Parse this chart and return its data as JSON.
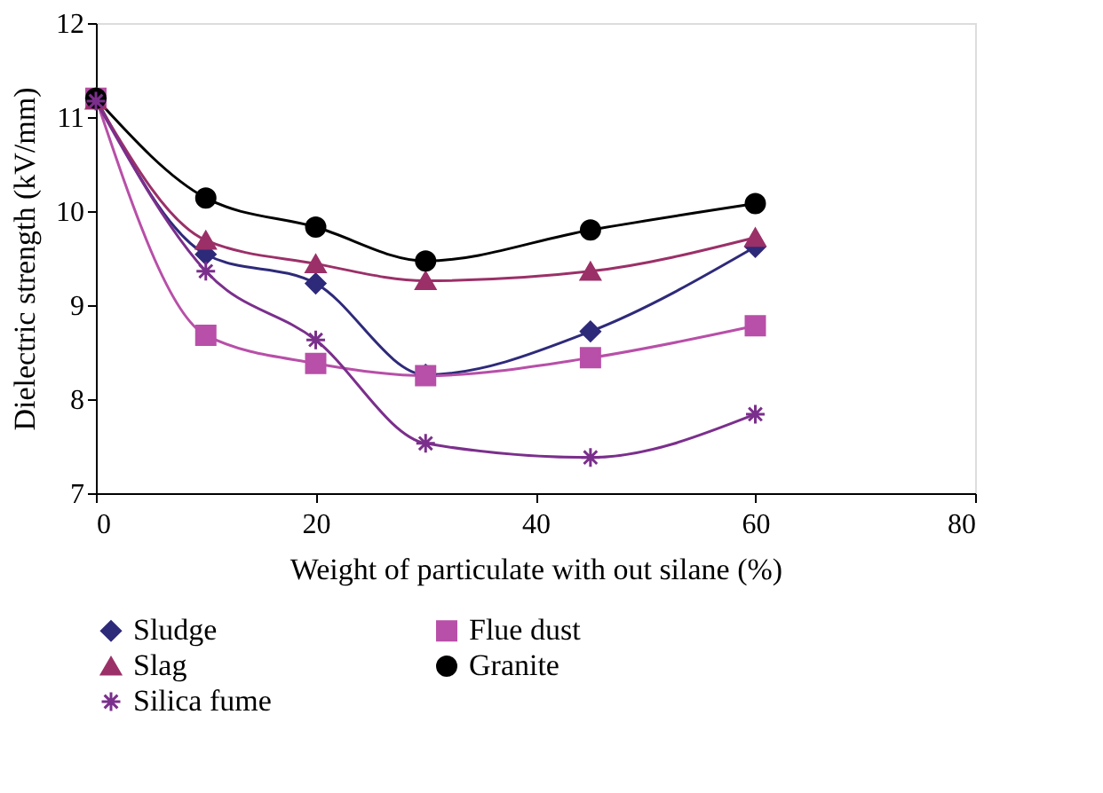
{
  "chart_data": {
    "type": "line",
    "xlabel": "Weight of particulate with out silane (%)",
    "ylabel": "Dielectric strength (kV/mm)",
    "x": [
      0,
      10,
      20,
      30,
      45,
      60
    ],
    "series": [
      {
        "name": "Sludge",
        "color": "#2e2a7a",
        "marker": "diamond",
        "values": [
          11.2,
          9.54,
          9.23,
          8.26,
          8.72,
          9.62
        ]
      },
      {
        "name": "Flue dust",
        "color": "#b84fa8",
        "marker": "square",
        "values": [
          11.2,
          8.68,
          8.38,
          8.25,
          8.44,
          8.78
        ]
      },
      {
        "name": "Slag",
        "color": "#9b3068",
        "marker": "triangle",
        "values": [
          11.18,
          9.69,
          9.44,
          9.26,
          9.36,
          9.72
        ]
      },
      {
        "name": "Granite",
        "color": "#000000",
        "marker": "circle",
        "values": [
          11.2,
          10.14,
          9.83,
          9.47,
          9.8,
          10.08
        ]
      },
      {
        "name": "Silica fume",
        "color": "#7b2f8c",
        "marker": "cross",
        "values": [
          11.17,
          9.36,
          8.63,
          7.53,
          7.38,
          7.84
        ]
      }
    ],
    "xlim": [
      0,
      80
    ],
    "xticks": [
      0,
      20,
      40,
      60,
      80
    ],
    "ylim": [
      7,
      12
    ],
    "yticks": [
      7,
      8,
      9,
      10,
      11,
      12
    ],
    "grid": false,
    "legend": "bottom"
  }
}
